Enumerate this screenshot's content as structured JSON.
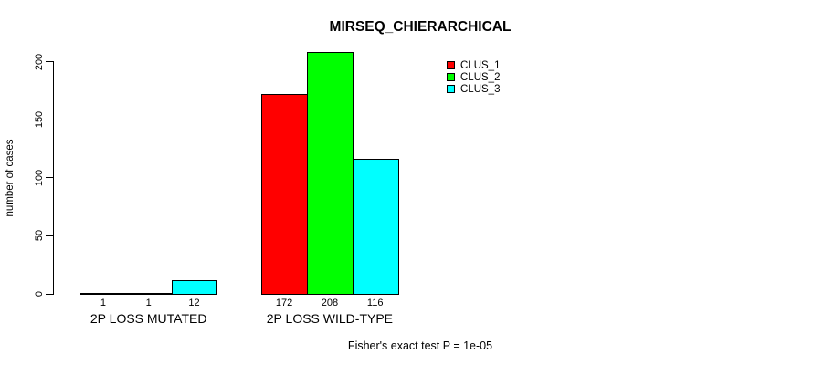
{
  "chart_data": {
    "type": "bar",
    "title": "MIRSEQ_CHIERARCHICAL",
    "ylabel": "number of cases",
    "xlabel": "",
    "categories": [
      "2P LOSS MUTATED",
      "2P LOSS WILD-TYPE"
    ],
    "series": [
      {
        "name": "CLUS_1",
        "color": "#ff0000",
        "values": [
          1,
          172
        ]
      },
      {
        "name": "CLUS_2",
        "color": "#00ff00",
        "values": [
          1,
          208
        ]
      },
      {
        "name": "CLUS_3",
        "color": "#00ffff",
        "values": [
          12,
          116
        ]
      }
    ],
    "yticks": [
      0,
      50,
      100,
      150,
      200
    ],
    "ylim": [
      0,
      200
    ],
    "bar_value_labels": [
      [
        "1",
        "1",
        "12"
      ],
      [
        "172",
        "208",
        "116"
      ]
    ],
    "legend_position": "top-right",
    "grid": false,
    "annotation": "Fisher's exact test P = 1e-05"
  }
}
